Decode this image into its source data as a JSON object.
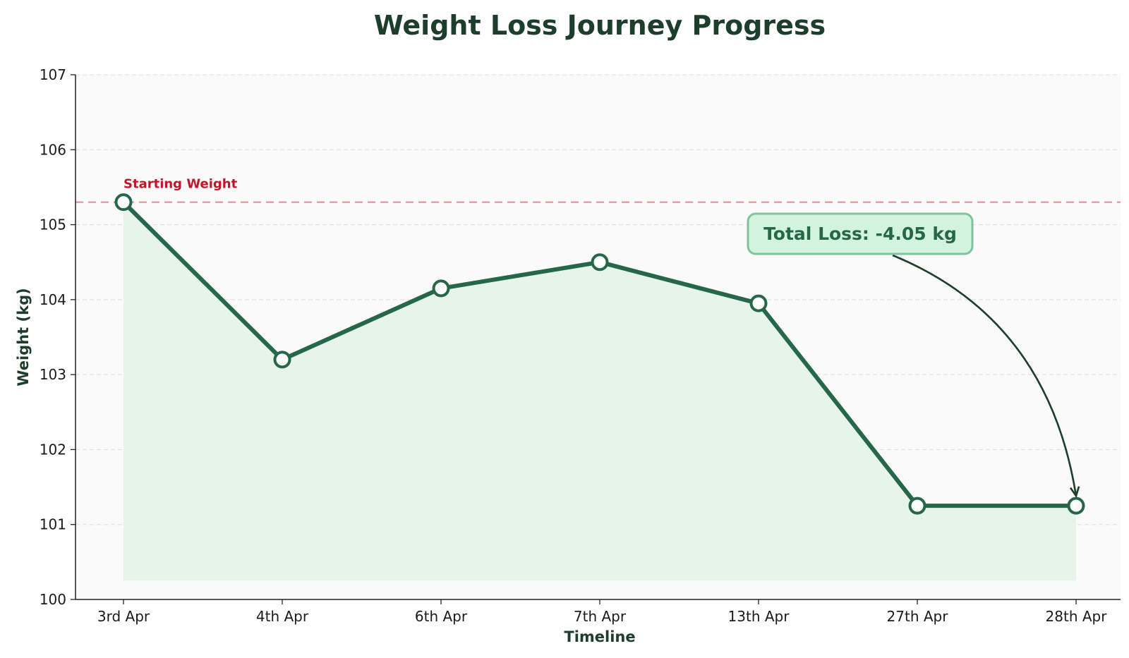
{
  "chart_data": {
    "type": "line",
    "title": "Weight Loss Journey Progress",
    "xlabel": "Timeline",
    "ylabel": "Weight (kg)",
    "categories": [
      "3rd Apr",
      "4th Apr",
      "6th Apr",
      "7th Apr",
      "13th Apr",
      "27th Apr",
      "28th Apr"
    ],
    "series": [
      {
        "values": [
          105.3,
          103.2,
          104.15,
          104.5,
          103.95,
          101.25,
          101.25
        ]
      }
    ],
    "ylim": [
      100,
      107
    ],
    "yticks": [
      100,
      101,
      102,
      103,
      104,
      105,
      106,
      107
    ],
    "grid": "horizontal-dashed",
    "fill_baseline": 100.25,
    "reference_line": {
      "value": 105.3,
      "label": "Starting Weight",
      "style": "dashed"
    },
    "annotation": {
      "text": "Total Loss: -4.05 kg",
      "points_to": "28th Apr"
    }
  },
  "colors": {
    "title": "#1d3d2d",
    "axis_label": "#1d3d2d",
    "line": "#276749",
    "fill": "#e6f4ea",
    "marker_fill": "#ffffff",
    "reference_line": "#e8909a",
    "reference_label": "#c0152b",
    "annotation_bg": "#d4f3df",
    "annotation_border": "#7cc49b",
    "annotation_text": "#276749",
    "arrow": "#1d3d2d",
    "plot_bg": "#fafafa",
    "grid": "#dcdcdc",
    "axis": "#222222"
  }
}
